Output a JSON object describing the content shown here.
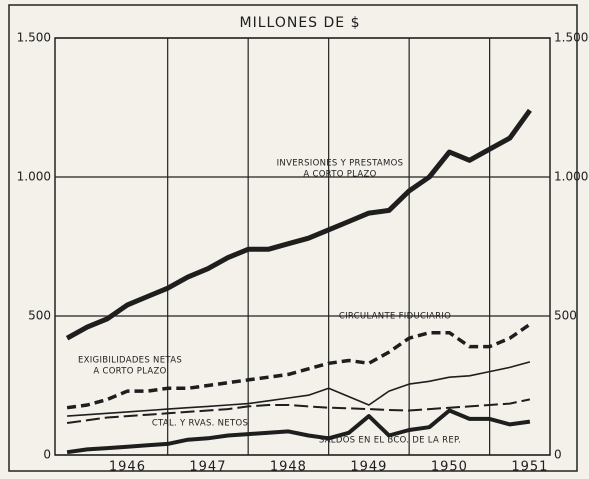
{
  "chart_data": {
    "type": "line",
    "title": "MILLONES DE $",
    "x": [
      1945.75,
      1946,
      1946.25,
      1946.5,
      1946.75,
      1947,
      1947.25,
      1947.5,
      1947.75,
      1948,
      1948.25,
      1948.5,
      1948.75,
      1949,
      1949.25,
      1949.5,
      1949.75,
      1950,
      1950.25,
      1950.5,
      1950.75,
      1951,
      1951.25,
      1951.5
    ],
    "xlim": [
      1945.6,
      1951.75
    ],
    "xticks": [
      {
        "value": 1946.5,
        "label": "1946"
      },
      {
        "value": 1947.5,
        "label": "1947"
      },
      {
        "value": 1948.5,
        "label": "1948"
      },
      {
        "value": 1949.5,
        "label": "1949"
      },
      {
        "value": 1950.5,
        "label": "1950"
      },
      {
        "value": 1951.5,
        "label": "1951"
      }
    ],
    "ylim": [
      0,
      1500
    ],
    "yticks": [
      0,
      500,
      {
        "value": 1000,
        "label": "1.000"
      },
      {
        "value": 1500,
        "label": "1.500"
      }
    ],
    "grid": true,
    "series": [
      {
        "label": [
          "INVERSIONES Y PRESTAMOS",
          "A CORTO PLAZO"
        ],
        "color": "#1e1e1e",
        "width": 5,
        "dash": "solid",
        "values": [
          420,
          460,
          490,
          540,
          570,
          600,
          640,
          670,
          710,
          740,
          740,
          760,
          780,
          810,
          840,
          870,
          880,
          950,
          1000,
          1090,
          1060,
          1100,
          1140,
          1240
        ]
      },
      {
        "label": [
          "CIRCULANTE FIDUCIARIO"
        ],
        "color": "#1e1e1e",
        "width": 3.5,
        "dash": "dashed",
        "values": [
          170,
          180,
          200,
          230,
          230,
          240,
          240,
          250,
          260,
          270,
          280,
          290,
          310,
          330,
          340,
          330,
          370,
          420,
          440,
          440,
          390,
          390,
          420,
          470
        ]
      },
      {
        "label": [
          "EXIGIBILIDADES NETAS",
          "A CORTO PLAZO"
        ],
        "color": "#1e1e1e",
        "width": 1.6,
        "dash": "solid",
        "values": [
          140,
          145,
          150,
          155,
          160,
          165,
          170,
          175,
          180,
          185,
          195,
          205,
          215,
          240,
          210,
          180,
          230,
          255,
          265,
          280,
          285,
          300,
          315,
          335
        ]
      },
      {
        "label": [
          "CTAL. Y RVAS. NETOS"
        ],
        "color": "#1e1e1e",
        "width": 2,
        "dash": "longdash",
        "values": [
          115,
          125,
          135,
          140,
          145,
          150,
          155,
          160,
          165,
          175,
          180,
          180,
          175,
          170,
          168,
          165,
          162,
          160,
          165,
          170,
          175,
          180,
          185,
          200
        ]
      },
      {
        "label": [
          "SALDOS EN EL BCO. DE LA REP."
        ],
        "color": "#1e1e1e",
        "width": 4,
        "dash": "solid",
        "values": [
          10,
          20,
          25,
          30,
          35,
          40,
          55,
          60,
          70,
          75,
          80,
          85,
          70,
          60,
          80,
          140,
          70,
          90,
          100,
          160,
          130,
          130,
          110,
          120
        ]
      }
    ]
  }
}
